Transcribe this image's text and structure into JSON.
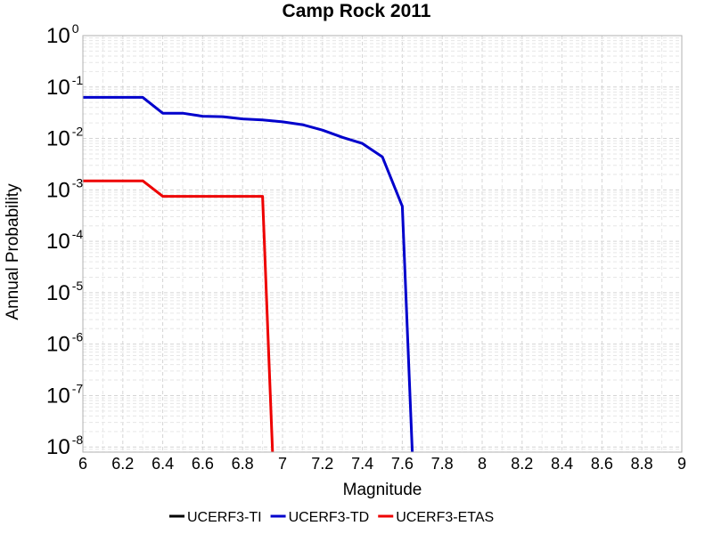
{
  "chart_data": {
    "type": "line",
    "title": "Camp Rock 2011",
    "xlabel": "Magnitude",
    "ylabel": "Annual Probability",
    "xlim": [
      6,
      9
    ],
    "ylim_log10": [
      -8.1,
      0
    ],
    "yscale": "log",
    "grid": true,
    "legend_placement": "bottom",
    "x_ticks": [
      "6",
      "6.2",
      "6.4",
      "6.6",
      "6.8",
      "7",
      "7.2",
      "7.4",
      "7.6",
      "7.8",
      "8",
      "8.2",
      "8.4",
      "8.6",
      "8.8",
      "9"
    ],
    "y_ticks": [
      {
        "base": "10",
        "exp": "0"
      },
      {
        "base": "10",
        "exp": "-1"
      },
      {
        "base": "10",
        "exp": "-2"
      },
      {
        "base": "10",
        "exp": "-3"
      },
      {
        "base": "10",
        "exp": "-4"
      },
      {
        "base": "10",
        "exp": "-5"
      },
      {
        "base": "10",
        "exp": "-6"
      },
      {
        "base": "10",
        "exp": "-7"
      },
      {
        "base": "10",
        "exp": "-8"
      }
    ],
    "series": [
      {
        "name": "UCERF3-TI",
        "color": "#000000",
        "points": []
      },
      {
        "name": "UCERF3-TD",
        "color": "#0000cc",
        "points": [
          [
            6.0,
            0.063
          ],
          [
            6.3,
            0.063
          ],
          [
            6.4,
            0.031
          ],
          [
            6.5,
            0.031
          ],
          [
            6.6,
            0.027
          ],
          [
            6.7,
            0.0265
          ],
          [
            6.8,
            0.024
          ],
          [
            6.9,
            0.023
          ],
          [
            7.0,
            0.021
          ],
          [
            7.1,
            0.0185
          ],
          [
            7.2,
            0.0145
          ],
          [
            7.3,
            0.0105
          ],
          [
            7.4,
            0.008
          ],
          [
            7.5,
            0.0044
          ],
          [
            7.6,
            0.00048
          ],
          [
            7.65,
            1e-09
          ]
        ]
      },
      {
        "name": "UCERF3-ETAS",
        "color": "#ee0000",
        "points": [
          [
            6.0,
            0.0015
          ],
          [
            6.3,
            0.0015
          ],
          [
            6.4,
            0.00075
          ],
          [
            6.5,
            0.00075
          ],
          [
            6.9,
            0.00075
          ],
          [
            6.95,
            1e-09
          ]
        ]
      }
    ]
  }
}
